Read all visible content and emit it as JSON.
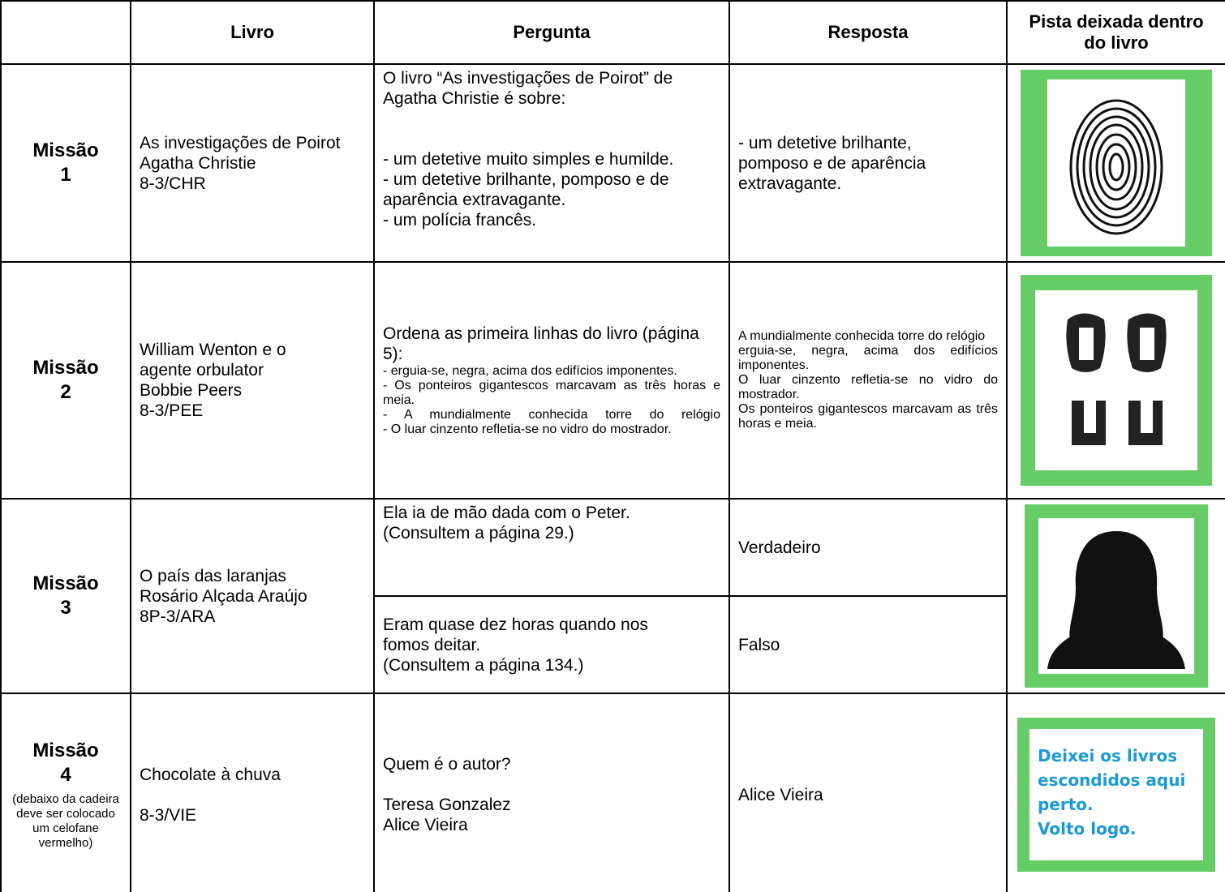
{
  "table": {
    "header": [
      "Livro",
      "Pergunta",
      "Resposta",
      "Pista deixada dentro do livro"
    ],
    "rows": [
      {
        "mission": "Missão",
        "number": "1",
        "book": [
          "As investigações de Poirot",
          "Agatha Christie",
          "8-3/CHR"
        ],
        "questions": [
          {
            "intro": "O livro “As investigações de Poirot” de Agatha Christie é sobre:",
            "options": [
              "- um detetive muito simples e humilde.",
              "- um detetive brilhante, pomposo e de aparência extravagante.",
              "- um polícia francês."
            ],
            "answer": [
              "- um detetive brilhante, pomposo e de aparência extravagante."
            ]
          }
        ]
      },
      {
        "mission": "Missão",
        "number": "2",
        "book": [
          "William Wenton e o agente orbulator",
          "Bobbie Peers",
          "8-3/PEE"
        ],
        "questions": [
          {
            "intro": "Ordena as primeira linhas do livro (página 5):",
            "options": [
              "- erguia-se, negra, acima dos edifícios imponentes.",
              "- Os ponteiros gigantescos marcavam as três horas e meia.",
              "- A mundialmente conhecida torre do relógio",
              "- O luar cinzento refletia-se no vidro do mostrador."
            ],
            "answer": [
              "A mundialmente conhecida torre do relógio",
              "erguia-se, negra, acima dos edifícios imponentes.",
              "O luar cinzento refletia-se no vidro do mostrador.",
              "Os ponteiros gigantescos marcavam as três horas e meia."
            ]
          }
        ]
      },
      {
        "mission": "Missão",
        "number": "3",
        "book": [
          "O país das laranjas",
          "Rosário Alçada Araújo",
          "8P-3/ARA"
        ],
        "questions": [
          {
            "intro": "Ela ia de mão dada com o Peter.",
            "options": [
              "(Consultem a página 29.)"
            ],
            "answer": [
              "Verdadeiro"
            ]
          },
          {
            "intro": "Eram quase dez horas quando nos fomos deitar.",
            "options": [
              "(Consultem a página 134.)"
            ],
            "answer": [
              "Falso"
            ]
          }
        ]
      },
      {
        "mission": "Missão",
        "number": "4",
        "note": "(debaixo da cadeira deve ser colocado um celofane vermelho)",
        "book": [
          "Chocolate à chuva",
          "8-3/VIE"
        ],
        "questions": [
          {
            "intro": "Quem é o autor?",
            "options": [
              "Teresa Gonzalez",
              "Alice Vieira"
            ],
            "answer": [
              "Alice Vieira"
            ]
          }
        ],
        "clue": [
          "Deixei os livros escondidos aqui perto.",
          "Volto logo."
        ]
      }
    ]
  }
}
